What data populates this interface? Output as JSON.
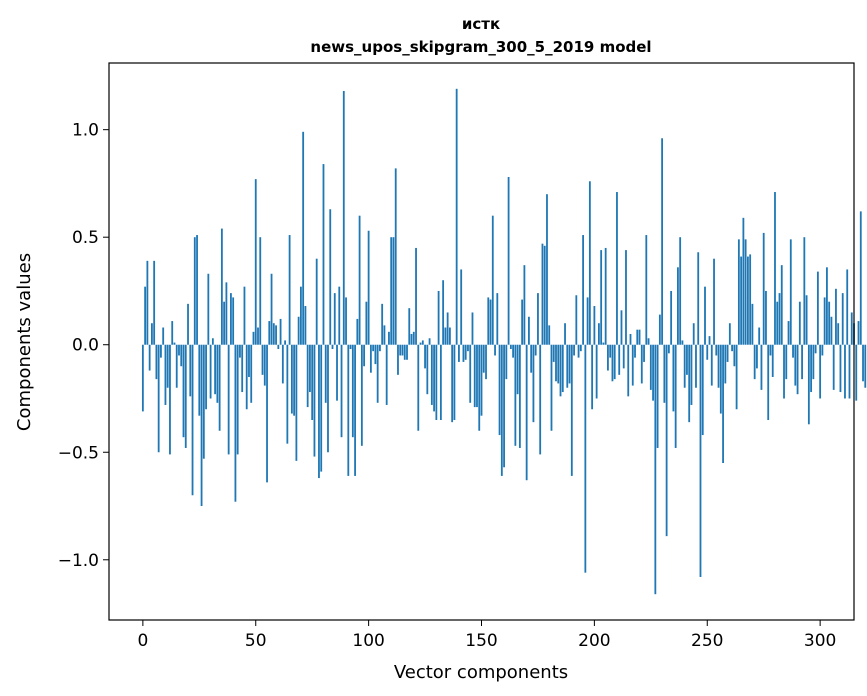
{
  "chart_data": {
    "type": "bar",
    "title_line1": "истк",
    "title_line2": "news_upos_skipgram_300_5_2019 model",
    "xlabel": "Vector components",
    "ylabel": "Components values",
    "xlim": [
      -15,
      315
    ],
    "ylim": [
      -1.28,
      1.31
    ],
    "xticks": [
      0,
      50,
      100,
      150,
      200,
      250,
      300
    ],
    "xtick_labels": [
      "0",
      "50",
      "100",
      "150",
      "200",
      "250",
      "300"
    ],
    "yticks": [
      -1.0,
      -0.5,
      0.0,
      0.5,
      1.0
    ],
    "ytick_labels": [
      "−1.0",
      "−0.5",
      "0.0",
      "0.5",
      "1.0"
    ],
    "bar_color": "#1f77b4",
    "values": [
      -0.31,
      0.27,
      0.39,
      -0.12,
      0.1,
      0.39,
      -0.16,
      -0.5,
      -0.06,
      0.08,
      -0.28,
      -0.2,
      -0.51,
      0.11,
      0.01,
      -0.2,
      -0.05,
      -0.1,
      -0.43,
      -0.48,
      0.19,
      -0.24,
      -0.7,
      0.5,
      0.51,
      -0.33,
      -0.75,
      -0.53,
      -0.3,
      0.33,
      -0.25,
      0.03,
      -0.23,
      -0.27,
      -0.4,
      0.54,
      0.2,
      0.29,
      -0.51,
      0.24,
      0.22,
      -0.73,
      -0.51,
      -0.06,
      -0.22,
      0.27,
      -0.3,
      -0.15,
      -0.27,
      0.06,
      0.77,
      0.08,
      0.5,
      -0.14,
      -0.19,
      -0.64,
      0.11,
      0.33,
      0.1,
      0.09,
      -0.02,
      0.12,
      -0.18,
      0.02,
      -0.46,
      0.51,
      -0.32,
      -0.33,
      -0.54,
      0.13,
      0.27,
      0.99,
      0.18,
      -0.29,
      -0.22,
      -0.35,
      -0.52,
      0.4,
      -0.62,
      -0.59,
      0.84,
      -0.27,
      -0.5,
      0.63,
      -0.02,
      0.24,
      -0.26,
      0.27,
      -0.43,
      1.18,
      0.22,
      -0.61,
      -0.02,
      -0.43,
      -0.61,
      0.12,
      0.6,
      -0.47,
      -0.1,
      0.2,
      0.53,
      -0.13,
      -0.03,
      -0.09,
      -0.27,
      -0.03,
      0.19,
      0.09,
      -0.28,
      0.06,
      0.5,
      0.5,
      0.82,
      -0.14,
      -0.05,
      -0.05,
      -0.07,
      -0.07,
      0.17,
      0.05,
      0.06,
      0.45,
      -0.4,
      0.01,
      0.02,
      -0.11,
      -0.23,
      0.03,
      -0.28,
      -0.31,
      -0.35,
      0.25,
      -0.35,
      0.3,
      0.08,
      0.15,
      0.08,
      -0.36,
      -0.35,
      1.19,
      -0.08,
      0.35,
      -0.08,
      -0.07,
      -0.03,
      -0.27,
      0.15,
      -0.29,
      -0.29,
      -0.4,
      -0.33,
      -0.13,
      -0.16,
      0.22,
      0.21,
      0.6,
      -0.05,
      0.24,
      -0.42,
      -0.61,
      -0.57,
      -0.16,
      0.78,
      -0.02,
      -0.06,
      -0.47,
      -0.23,
      -0.48,
      0.21,
      0.37,
      -0.63,
      0.13,
      -0.13,
      -0.36,
      -0.05,
      0.24,
      -0.51,
      0.47,
      0.46,
      0.7,
      0.09,
      -0.4,
      -0.08,
      -0.17,
      -0.18,
      -0.24,
      -0.22,
      0.1,
      -0.2,
      -0.18,
      -0.61,
      -0.05,
      0.23,
      -0.06,
      -0.03,
      0.51,
      -1.06,
      0.22,
      0.76,
      -0.3,
      0.18,
      -0.25,
      0.1,
      0.44,
      0.01,
      0.45,
      -0.12,
      -0.06,
      -0.17,
      -0.16,
      0.71,
      -0.14,
      0.16,
      -0.11,
      0.44,
      -0.24,
      0.05,
      -0.19,
      -0.06,
      0.07,
      0.07,
      -0.18,
      -0.08,
      0.51,
      0.03,
      -0.21,
      -0.26,
      -1.16,
      -0.48,
      0.14,
      0.96,
      -0.27,
      -0.89,
      -0.04,
      0.25,
      -0.31,
      -0.48,
      0.36,
      0.5,
      0.02,
      -0.2,
      -0.14,
      -0.36,
      -0.28,
      0.1,
      -0.2,
      0.43,
      -1.08,
      -0.42,
      0.27,
      -0.07,
      0.04,
      -0.19,
      0.4,
      -0.05,
      -0.2,
      -0.32,
      -0.55,
      -0.18,
      -0.08,
      0.1,
      -0.03,
      -0.1,
      -0.3,
      0.49,
      0.41,
      0.59,
      0.49,
      0.41,
      0.42,
      0.19,
      -0.16,
      -0.11,
      0.08,
      -0.21,
      0.52,
      0.25,
      -0.35,
      -0.05,
      -0.15,
      0.71,
      0.2,
      0.24,
      0.37,
      -0.25,
      -0.16,
      0.11,
      0.49,
      -0.06,
      -0.19,
      -0.23,
      0.2,
      -0.16,
      0.5,
      0.23,
      -0.37,
      -0.22,
      -0.16,
      -0.04,
      0.34,
      -0.25,
      -0.05,
      0.22,
      0.36,
      0.2,
      0.13,
      -0.21,
      0.26,
      0.1,
      -0.22,
      0.24,
      -0.25,
      0.35,
      -0.25,
      0.15,
      0.1,
      -0.26,
      0.11,
      0.62,
      -0.17,
      -0.2
    ],
    "values_note": "approximate, read from bar heights"
  }
}
